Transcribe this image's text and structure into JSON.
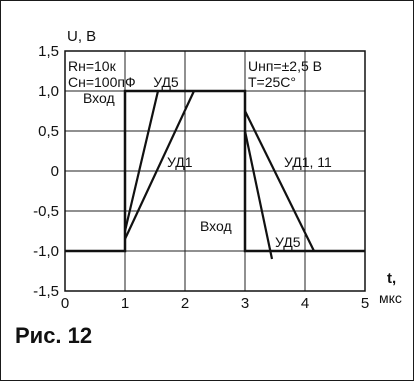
{
  "caption": "Рис. 12",
  "chart_data": {
    "type": "line",
    "xlabel": "t,",
    "xunit": "мкс",
    "ylabel": "U, В",
    "xlim": [
      0,
      5
    ],
    "ylim": [
      -1.5,
      1.5
    ],
    "xticks": [
      "0",
      "1",
      "2",
      "3",
      "4",
      "5"
    ],
    "yticks": [
      "1,5",
      "1,0",
      "0,5",
      "0",
      "-0,5",
      "-1,0",
      "-1,5"
    ],
    "grid": true,
    "series": [
      {
        "name": "Вход",
        "x": [
          0,
          1,
          1,
          3,
          3,
          5
        ],
        "y": [
          -1.0,
          -1.0,
          1.0,
          1.0,
          -1.0,
          -1.0
        ]
      },
      {
        "name": "УД5",
        "x": [
          1,
          1.55
        ],
        "y": [
          -0.75,
          1.0
        ]
      },
      {
        "name": "УД1",
        "x": [
          1,
          2.15
        ],
        "y": [
          -0.85,
          1.0
        ]
      },
      {
        "name": "УД1, 11",
        "x": [
          3,
          4.15
        ],
        "y": [
          0.75,
          -1.0
        ]
      },
      {
        "name": "УД5",
        "x": [
          3,
          3.45
        ],
        "y": [
          0.5,
          -1.1
        ]
      }
    ],
    "annotations": [
      {
        "text": "Rн=10к",
        "x": 0.05,
        "y": 1.25
      },
      {
        "text": "Cн=100пФ",
        "x": 0.05,
        "y": 1.05
      },
      {
        "text": "УД5",
        "x": 1.47,
        "y": 1.05
      },
      {
        "text": "Uнп=±2,5 В",
        "x": 3.05,
        "y": 1.25
      },
      {
        "text": "T=25C°",
        "x": 3.05,
        "y": 1.05
      },
      {
        "text": "Вход",
        "x": 0.3,
        "y": 0.85
      },
      {
        "text": "УД1",
        "x": 1.7,
        "y": 0.05
      },
      {
        "text": "УД1, 11",
        "x": 3.65,
        "y": 0.05
      },
      {
        "text": "Вход",
        "x": 2.25,
        "y": -0.75
      },
      {
        "text": "УД5",
        "x": 3.5,
        "y": -0.95
      }
    ]
  }
}
